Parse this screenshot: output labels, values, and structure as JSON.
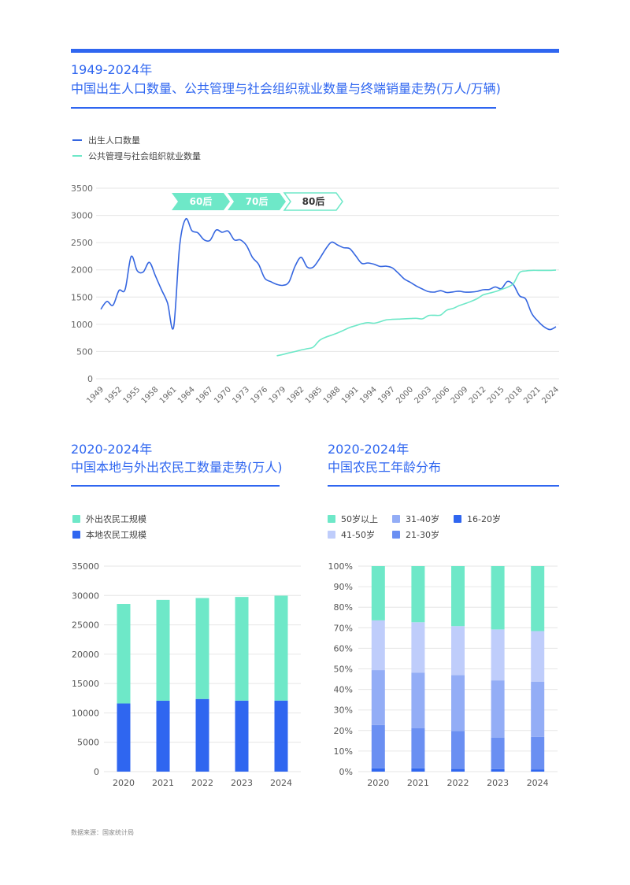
{
  "colors": {
    "accent": "#2f66f0",
    "line_births": "#3566e0",
    "line_employment": "#6ee8c8",
    "teal": "#6ee8c8",
    "blue": "#2f66f0"
  },
  "top_chart": {
    "title_line1": "1949-2024年",
    "title_line2": "中国出生人口数量、公共管理与社会组织就业数量与终端销量走势(万人/万辆)",
    "legend": [
      "出生人口数量",
      "公共管理与社会组织就业数量"
    ],
    "badges": [
      "60后",
      "70后",
      "80后"
    ]
  },
  "bottom_left": {
    "title_line1": "2020-2024年",
    "title_line2": "中国本地与外出农民工数量走势(万人)",
    "legend": [
      "外出农民工规模",
      "本地农民工规模"
    ]
  },
  "bottom_right": {
    "title_line1": "2020-2024年",
    "title_line2": "中国农民工年龄分布",
    "legend": [
      "50岁以上",
      "31-40岁",
      "16-20岁",
      "41-50岁",
      "21-30岁"
    ]
  },
  "source": "数据来源：国家统计局",
  "chart_data": [
    {
      "type": "line",
      "ylim": [
        0,
        3500
      ],
      "yticks": [
        0,
        500,
        1000,
        1500,
        2000,
        2500,
        3000,
        3500
      ],
      "xticks": [
        1949,
        1952,
        1955,
        1958,
        1961,
        1964,
        1967,
        1970,
        1973,
        1976,
        1979,
        1982,
        1985,
        1988,
        1991,
        1994,
        1997,
        2000,
        2003,
        2006,
        2009,
        2012,
        2015,
        2018,
        2021,
        2024
      ],
      "grid": true,
      "legend_position": "top-left",
      "series": [
        {
          "name": "出生人口数量",
          "x": [
            1949,
            1950,
            1951,
            1952,
            1953,
            1954,
            1955,
            1956,
            1957,
            1958,
            1959,
            1960,
            1961,
            1962,
            1963,
            1964,
            1965,
            1966,
            1967,
            1968,
            1969,
            1970,
            1971,
            1972,
            1973,
            1974,
            1975,
            1976,
            1977,
            1978,
            1979,
            1980,
            1981,
            1982,
            1983,
            1984,
            1985,
            1986,
            1987,
            1988,
            1989,
            1990,
            1991,
            1992,
            1993,
            1994,
            1995,
            1996,
            1997,
            1998,
            1999,
            2000,
            2001,
            2002,
            2003,
            2004,
            2005,
            2006,
            2007,
            2008,
            2009,
            2010,
            2011,
            2012,
            2013,
            2014,
            2015,
            2016,
            2017,
            2018,
            2019,
            2020,
            2021,
            2022,
            2023,
            2024
          ],
          "values": [
            1275,
            1419,
            1349,
            1622,
            1637,
            2245,
            1984,
            1961,
            2138,
            1889,
            1635,
            1389,
            949,
            2451,
            2934,
            2721,
            2679,
            2554,
            2543,
            2731,
            2690,
            2710,
            2551,
            2550,
            2447,
            2226,
            2102,
            1849,
            1783,
            1733,
            1715,
            1776,
            2064,
            2230,
            2052,
            2050,
            2196,
            2374,
            2508,
            2457,
            2407,
            2391,
            2258,
            2119,
            2126,
            2104,
            2063,
            2067,
            2038,
            1942,
            1834,
            1771,
            1702,
            1647,
            1599,
            1593,
            1617,
            1584,
            1594,
            1608,
            1591,
            1592,
            1604,
            1635,
            1640,
            1687,
            1655,
            1786,
            1723,
            1523,
            1465,
            1200,
            1062,
            956,
            902,
            954
          ]
        },
        {
          "name": "公共管理与社会组织就业数量",
          "x": [
            1978,
            1979,
            1980,
            1981,
            1982,
            1983,
            1984,
            1985,
            1986,
            1987,
            1988,
            1989,
            1990,
            1991,
            1992,
            1993,
            1994,
            1995,
            1996,
            1997,
            1998,
            1999,
            2000,
            2001,
            2002,
            2003,
            2004,
            2005,
            2006,
            2007,
            2008,
            2009,
            2010,
            2011,
            2012,
            2013,
            2014,
            2015,
            2016,
            2017,
            2018,
            2019,
            2020,
            2021,
            2022,
            2023,
            2024
          ],
          "values": [
            421,
            445,
            474,
            499,
            528,
            551,
            580,
            700,
            760,
            800,
            840,
            890,
            940,
            975,
            1010,
            1030,
            1020,
            1045,
            1080,
            1090,
            1095,
            1100,
            1105,
            1110,
            1100,
            1160,
            1165,
            1170,
            1260,
            1290,
            1340,
            1380,
            1420,
            1470,
            1540,
            1570,
            1600,
            1640,
            1680,
            1750,
            1950,
            1980,
            1990,
            1990,
            1990,
            1990,
            1995
          ]
        }
      ]
    },
    {
      "type": "bar",
      "stacked": true,
      "categories": [
        "2020",
        "2021",
        "2022",
        "2023",
        "2024"
      ],
      "ylim": [
        0,
        35000
      ],
      "yticks": [
        0,
        5000,
        10000,
        15000,
        20000,
        25000,
        30000,
        35000
      ],
      "grid": true,
      "legend_position": "top-left",
      "series": [
        {
          "name": "本地农民工规模",
          "values": [
            11601,
            12079,
            12372,
            12095,
            12102
          ]
        },
        {
          "name": "外出农民工规模",
          "values": [
            16959,
            17172,
            17190,
            17658,
            17871
          ]
        }
      ]
    },
    {
      "type": "bar",
      "stacked": true,
      "categories": [
        "2020",
        "2021",
        "2022",
        "2023",
        "2024"
      ],
      "ylim": [
        0,
        100
      ],
      "yticks": [
        "0%",
        "10%",
        "20%",
        "30%",
        "40%",
        "50%",
        "60%",
        "70%",
        "80%",
        "90%",
        "100%"
      ],
      "grid": true,
      "legend_position": "top-left",
      "series": [
        {
          "name": "16-20岁",
          "values": [
            1.6,
            1.6,
            1.3,
            1.2,
            1.1
          ]
        },
        {
          "name": "21-30岁",
          "values": [
            21.1,
            19.6,
            18.5,
            15.4,
            15.8
          ]
        },
        {
          "name": "31-40岁",
          "values": [
            26.7,
            27.0,
            27.2,
            27.8,
            26.9
          ]
        },
        {
          "name": "41-50岁",
          "values": [
            24.2,
            24.5,
            23.8,
            24.8,
            24.6
          ]
        },
        {
          "name": "50岁以上",
          "values": [
            26.4,
            27.3,
            29.2,
            30.8,
            31.6
          ]
        }
      ]
    }
  ]
}
